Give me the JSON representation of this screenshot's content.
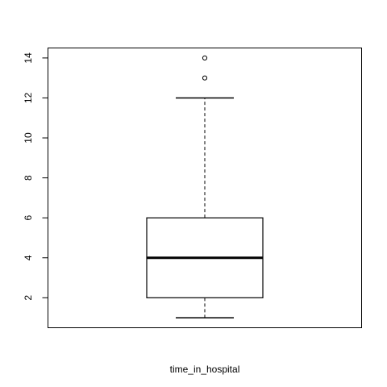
{
  "chart_data": {
    "type": "box",
    "xlabel": "time_in_hospital",
    "ylabel": "",
    "title": "",
    "ylim": [
      0.5,
      14.5
    ],
    "y_ticks": [
      2,
      4,
      6,
      8,
      10,
      12,
      14
    ],
    "y_tick_labels": [
      "2",
      "4",
      "6",
      "8",
      "10",
      "12",
      "14"
    ],
    "grid": false,
    "box": {
      "name": "time_in_hospital",
      "whisker_low": 1,
      "q1": 2,
      "median": 4,
      "q3": 6,
      "whisker_high": 12,
      "outliers": [
        13,
        14
      ]
    }
  }
}
